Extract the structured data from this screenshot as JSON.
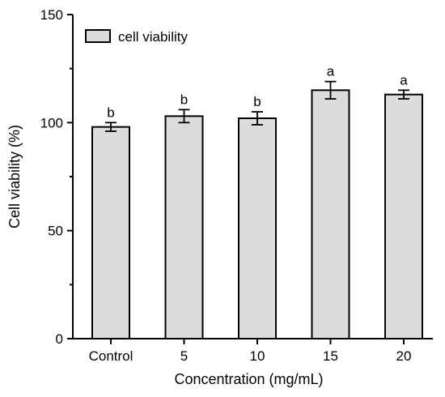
{
  "chart_data": {
    "type": "bar",
    "categories": [
      "Control",
      "5",
      "10",
      "15",
      "20"
    ],
    "series": [
      {
        "name": "cell viability",
        "values": [
          98,
          103,
          102,
          115,
          113
        ],
        "errors": [
          2,
          3,
          3,
          4,
          2
        ],
        "significance": [
          "b",
          "b",
          "b",
          "a",
          "a"
        ]
      }
    ],
    "xlabel": "Concentration (mg/mL)",
    "ylabel": "Cell viability (%)",
    "ylim": [
      0,
      150
    ],
    "yticks": [
      0,
      50,
      100,
      150
    ],
    "grid": false,
    "legend_position": "top-left",
    "colors": {
      "bar_fill": "#dcdcdc",
      "bar_stroke": "#000000"
    }
  }
}
